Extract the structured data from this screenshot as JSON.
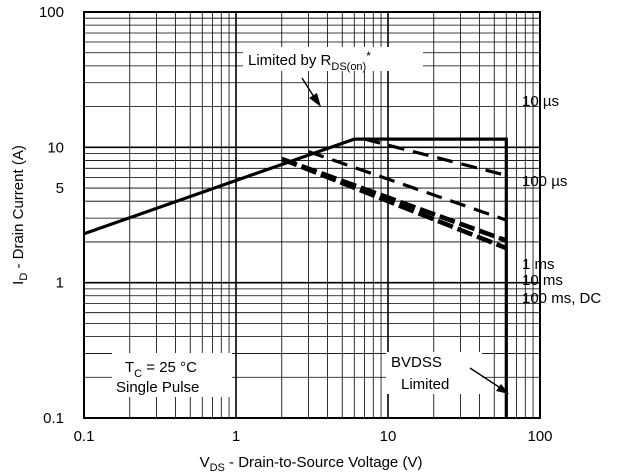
{
  "chart_data": {
    "type": "line",
    "xlabel_parts": [
      "V",
      "DS",
      " - Drain-to-Source Voltage (V)"
    ],
    "ylabel_parts": [
      "I",
      "D",
      " - Drain Current (A)"
    ],
    "x_scale": "log",
    "y_scale": "log",
    "xlim": [
      0.1,
      100
    ],
    "ylim": [
      0.1,
      100
    ],
    "grid": true,
    "x_ticks": [
      {
        "value": 0.1,
        "label": "0.1"
      },
      {
        "value": 1,
        "label": "1"
      },
      {
        "value": 10,
        "label": "10"
      },
      {
        "value": 100,
        "label": "100"
      }
    ],
    "y_ticks": [
      {
        "value": 0.1,
        "label": "0.1"
      },
      {
        "value": 1,
        "label": "1"
      },
      {
        "value": 5,
        "label": "5"
      },
      {
        "value": 10,
        "label": "10"
      },
      {
        "value": 100,
        "label": "100"
      }
    ],
    "series": [
      {
        "name": "10 µs",
        "style": "solid",
        "points": [
          [
            0.1,
            2.3
          ],
          [
            6,
            11.5
          ],
          [
            60,
            11.5
          ],
          [
            60,
            0.1
          ]
        ]
      },
      {
        "name": "100 µs",
        "style": "dashed",
        "points": [
          [
            7,
            11.5
          ],
          [
            60,
            6.2
          ]
        ]
      },
      {
        "name": "1 ms",
        "style": "dashed",
        "points": [
          [
            3,
            9.3
          ],
          [
            60,
            2.9
          ]
        ]
      },
      {
        "name": "10 ms",
        "style": "dashed-heavy",
        "points": [
          [
            2,
            8.2
          ],
          [
            60,
            2.05
          ]
        ]
      },
      {
        "name": "100 ms, DC",
        "style": "dashed-heavy",
        "points": [
          [
            2,
            8.2
          ],
          [
            60,
            1.8
          ]
        ]
      }
    ],
    "labels": {
      "s10us": "10 µs",
      "s100us": "100 µs",
      "s1ms": "1 ms",
      "s10ms": "10 ms",
      "s100msdc": "100 ms, DC"
    },
    "annotations": {
      "limited_pre": "Limited by R",
      "limited_sub": "DS(on)",
      "limited_sup": "*",
      "tc_pre": "T",
      "tc_sub": "C",
      "tc_post": " = 25 °C",
      "single_pulse": "Single Pulse",
      "bvdss": "BVDSS",
      "bvdss_limited": "Limited"
    }
  }
}
